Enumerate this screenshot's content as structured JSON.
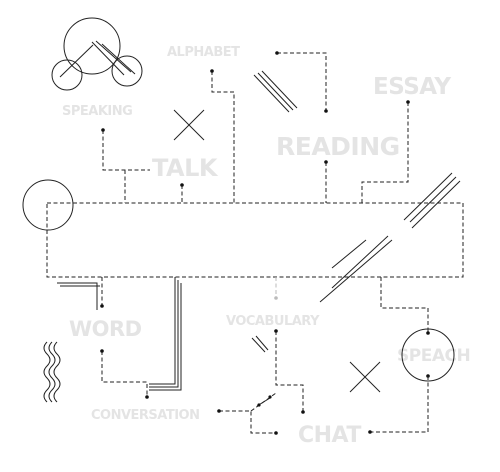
{
  "colors": {
    "line": "#222222",
    "word": "#e4e4e4",
    "connector_light": "#bbbbbb"
  },
  "words": {
    "alphabet": "ALPHABET",
    "speaking": "SPEAKING",
    "talk": "TALK",
    "reading": "READING",
    "essay": "ESSAY",
    "word": "WORD",
    "vocabulary": "VOCABULARY",
    "speach": "SPEACH",
    "conversation": "CONVERSATION",
    "chat": "CHAT"
  },
  "icons": {
    "molecule": "molecule-icon",
    "cross": "cross-icon",
    "circle": "circle-icon",
    "wavy": "wavy-lines-icon"
  }
}
